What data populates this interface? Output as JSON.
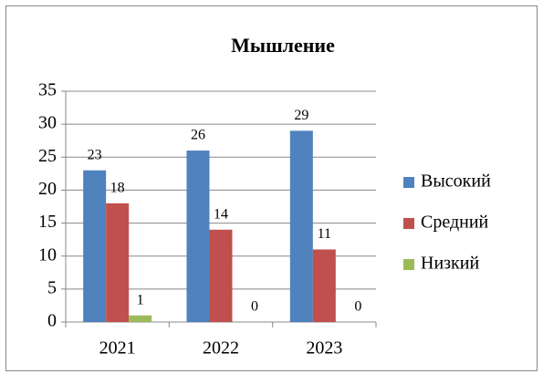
{
  "chart_data": {
    "type": "bar",
    "title": "Мышление",
    "categories": [
      "2021",
      "2022",
      "2023"
    ],
    "series": [
      {
        "name": "Высокий",
        "color": "#4f81bd",
        "values": [
          23,
          26,
          29
        ]
      },
      {
        "name": "Средний",
        "color": "#c0504d",
        "values": [
          18,
          14,
          11
        ]
      },
      {
        "name": "Низкий",
        "color": "#9bbb59",
        "values": [
          1,
          0,
          0
        ]
      }
    ],
    "ylim": [
      0,
      35
    ],
    "yticks": [
      0,
      5,
      10,
      15,
      20,
      25,
      30,
      35
    ],
    "grid": true,
    "legend": "right"
  }
}
